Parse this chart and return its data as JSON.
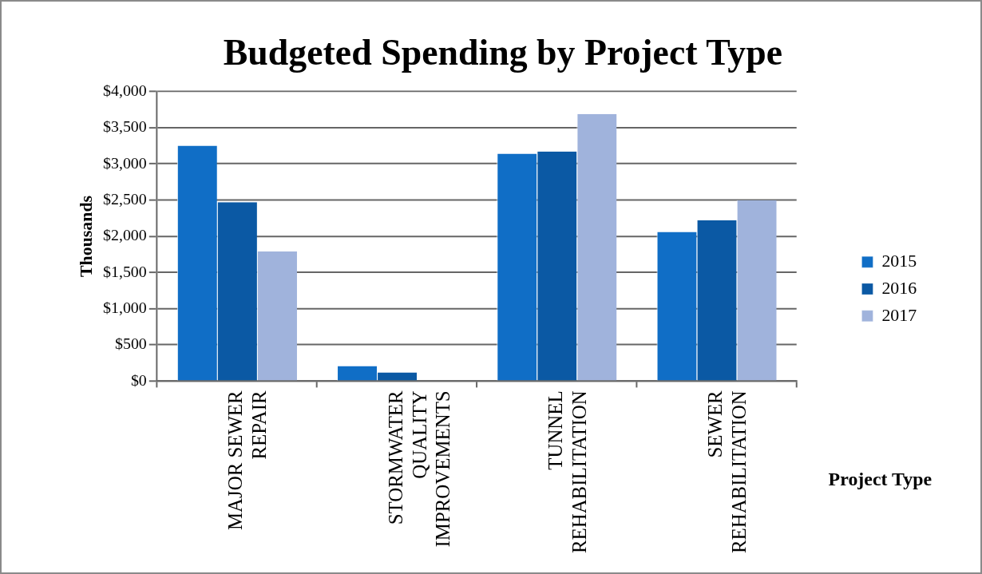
{
  "chart_data": {
    "type": "bar",
    "title": "Budgeted Spending by Project Type",
    "xlabel": "Project Type",
    "ylabel": "Thousands",
    "categories": [
      "MAJOR SEWER REPAIR",
      "STORMWATER QUALITY IMPROVEMENTS",
      "TUNNEL REHABILITATION",
      "SEWER REHABILITATION"
    ],
    "series": [
      {
        "name": "2015",
        "color": "#106ec6",
        "values": [
          3250,
          210,
          3140,
          2060
        ]
      },
      {
        "name": "2016",
        "color": "#0b59a4",
        "values": [
          2470,
          120,
          3170,
          2220
        ]
      },
      {
        "name": "2017",
        "color": "#a0b3dc",
        "values": [
          1790,
          0,
          3690,
          2500
        ]
      }
    ],
    "ylim": [
      0,
      4000
    ],
    "yticks": [
      {
        "value": 0,
        "label": "$0"
      },
      {
        "value": 500,
        "label": "$500"
      },
      {
        "value": 1000,
        "label": "$1,000"
      },
      {
        "value": 1500,
        "label": "$1,500"
      },
      {
        "value": 2000,
        "label": "$2,000"
      },
      {
        "value": 2500,
        "label": "$2,500"
      },
      {
        "value": 3000,
        "label": "$3,000"
      },
      {
        "value": 3500,
        "label": "$3,500"
      },
      {
        "value": 4000,
        "label": "$4,000"
      }
    ],
    "grid": "y",
    "legend": "right"
  }
}
